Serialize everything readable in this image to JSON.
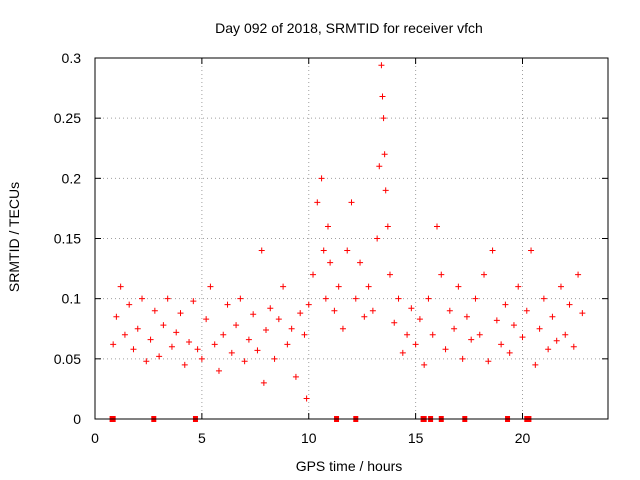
{
  "chart_data": {
    "type": "scatter",
    "title": "Day 092 of 2018, SRMTID for receiver vfch",
    "xlabel": "GPS time / hours",
    "ylabel": "SRMTID / TECUs",
    "xlim": [
      0,
      24
    ],
    "ylim": [
      0,
      0.3
    ],
    "grid": true,
    "xticks": [
      0,
      5,
      10,
      15,
      20
    ],
    "xtick_labels": [
      "0",
      "5",
      "10",
      "15",
      "20"
    ],
    "yticks": [
      0,
      0.05,
      0.1,
      0.15,
      0.2,
      0.25,
      0.3
    ],
    "ytick_labels": [
      "0",
      "0.05",
      "0.1",
      "0.15",
      "0.2",
      "0.25",
      "0.3"
    ],
    "marker": "plus",
    "color": "#ff0000",
    "series": [
      {
        "name": "SRMTID",
        "x": [
          0.85,
          1.0,
          1.2,
          1.4,
          1.6,
          1.8,
          2.0,
          2.2,
          2.4,
          2.6,
          2.8,
          3.0,
          3.2,
          3.4,
          3.6,
          3.8,
          4.0,
          4.2,
          4.4,
          4.6,
          4.8,
          5.0,
          5.2,
          5.4,
          5.6,
          5.8,
          6.0,
          6.2,
          6.4,
          6.6,
          6.8,
          7.0,
          7.2,
          7.4,
          7.6,
          7.8,
          7.9,
          8.0,
          8.2,
          8.4,
          8.6,
          8.8,
          9.0,
          9.2,
          9.4,
          9.6,
          9.8,
          9.9,
          10.0,
          10.2,
          10.4,
          10.6,
          10.7,
          10.8,
          10.9,
          11.0,
          11.2,
          11.4,
          11.6,
          11.8,
          12.0,
          12.2,
          12.4,
          12.6,
          12.8,
          13.0,
          13.2,
          13.3,
          13.4,
          13.45,
          13.5,
          13.55,
          13.6,
          13.7,
          13.8,
          14.0,
          14.2,
          14.4,
          14.6,
          14.8,
          15.0,
          15.2,
          15.4,
          15.6,
          15.8,
          16.0,
          16.2,
          16.4,
          16.6,
          16.8,
          17.0,
          17.2,
          17.4,
          17.6,
          17.8,
          18.0,
          18.2,
          18.4,
          18.6,
          18.8,
          19.0,
          19.2,
          19.4,
          19.6,
          19.8,
          20.0,
          20.2,
          20.4,
          20.6,
          20.8,
          21.0,
          21.2,
          21.4,
          21.6,
          21.8,
          22.0,
          22.2,
          22.4,
          22.6,
          22.8
        ],
        "y": [
          0.062,
          0.085,
          0.11,
          0.07,
          0.095,
          0.058,
          0.075,
          0.1,
          0.048,
          0.066,
          0.09,
          0.052,
          0.078,
          0.1,
          0.06,
          0.072,
          0.088,
          0.045,
          0.064,
          0.098,
          0.058,
          0.05,
          0.083,
          0.11,
          0.062,
          0.04,
          0.07,
          0.095,
          0.055,
          0.078,
          0.1,
          0.048,
          0.066,
          0.087,
          0.057,
          0.14,
          0.03,
          0.074,
          0.092,
          0.05,
          0.083,
          0.11,
          0.062,
          0.075,
          0.035,
          0.088,
          0.07,
          0.017,
          0.095,
          0.12,
          0.18,
          0.2,
          0.14,
          0.1,
          0.16,
          0.13,
          0.09,
          0.11,
          0.075,
          0.14,
          0.18,
          0.1,
          0.13,
          0.085,
          0.11,
          0.09,
          0.15,
          0.21,
          0.294,
          0.268,
          0.25,
          0.22,
          0.19,
          0.16,
          0.12,
          0.08,
          0.1,
          0.055,
          0.07,
          0.092,
          0.062,
          0.083,
          0.045,
          0.1,
          0.07,
          0.16,
          0.12,
          0.058,
          0.09,
          0.075,
          0.11,
          0.05,
          0.085,
          0.066,
          0.1,
          0.07,
          0.12,
          0.048,
          0.14,
          0.082,
          0.062,
          0.095,
          0.055,
          0.078,
          0.11,
          0.068,
          0.09,
          0.14,
          0.045,
          0.075,
          0.1,
          0.058,
          0.085,
          0.065,
          0.11,
          0.07,
          0.095,
          0.06,
          0.12,
          0.088
        ]
      }
    ],
    "data_gaps_at_zero_hours": [
      0.8,
      0.85,
      2.75,
      4.7,
      11.3,
      12.2,
      15.35,
      15.4,
      15.7,
      16.2,
      17.3,
      19.3,
      20.2,
      20.3
    ]
  }
}
